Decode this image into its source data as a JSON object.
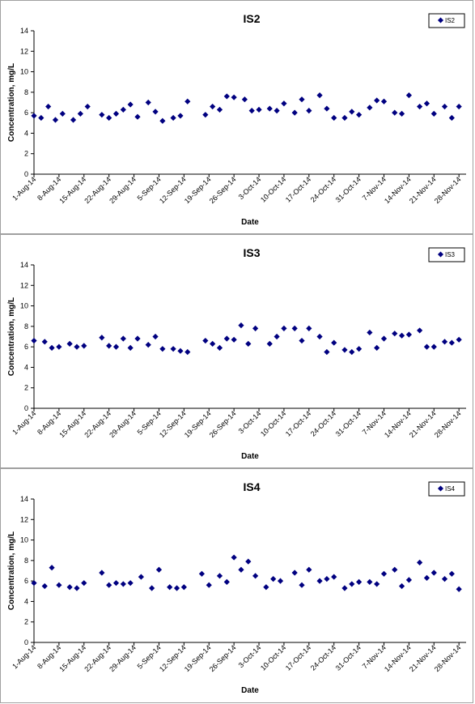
{
  "chart_data": [
    {
      "type": "scatter",
      "title": "IS2",
      "xlabel": "Date",
      "ylabel": "Concentration, mg/L",
      "ylim": [
        0,
        14
      ],
      "yticks": [
        0,
        2,
        4,
        6,
        8,
        10,
        12,
        14
      ],
      "xlim": [
        "2014-08-01",
        "2014-11-30"
      ],
      "xtick_labels": [
        "1-Aug-14",
        "8-Aug-14",
        "15-Aug-14",
        "22-Aug-14",
        "29-Aug-14",
        "5-Sep-14",
        "12-Sep-14",
        "19-Sep-14",
        "26-Sep-14",
        "3-Oct-14",
        "10-Oct-14",
        "17-Oct-14",
        "24-Oct-14",
        "31-Oct-14",
        "7-Nov-14",
        "14-Nov-14",
        "21-Nov-14",
        "28-Nov-14"
      ],
      "grid": false,
      "legend": "top-right",
      "marker_color": "#000080",
      "series": [
        {
          "name": "IS2",
          "x": [
            "2014-08-01",
            "2014-08-03",
            "2014-08-05",
            "2014-08-07",
            "2014-08-09",
            "2014-08-12",
            "2014-08-14",
            "2014-08-16",
            "2014-08-20",
            "2014-08-22",
            "2014-08-24",
            "2014-08-26",
            "2014-08-28",
            "2014-08-30",
            "2014-09-02",
            "2014-09-04",
            "2014-09-06",
            "2014-09-09",
            "2014-09-11",
            "2014-09-13",
            "2014-09-18",
            "2014-09-20",
            "2014-09-22",
            "2014-09-24",
            "2014-09-26",
            "2014-09-29",
            "2014-10-01",
            "2014-10-03",
            "2014-10-06",
            "2014-10-08",
            "2014-10-10",
            "2014-10-13",
            "2014-10-15",
            "2014-10-17",
            "2014-10-20",
            "2014-10-22",
            "2014-10-24",
            "2014-10-27",
            "2014-10-29",
            "2014-10-31",
            "2014-11-03",
            "2014-11-05",
            "2014-11-07",
            "2014-11-10",
            "2014-11-12",
            "2014-11-14",
            "2014-11-17",
            "2014-11-19",
            "2014-11-21",
            "2014-11-24",
            "2014-11-26",
            "2014-11-28"
          ],
          "values": [
            5.7,
            5.5,
            6.6,
            5.3,
            5.9,
            5.3,
            5.9,
            6.6,
            5.8,
            5.5,
            5.9,
            6.3,
            6.8,
            5.6,
            7.0,
            6.1,
            5.2,
            5.5,
            5.7,
            7.1,
            5.8,
            6.6,
            6.3,
            7.6,
            7.5,
            7.3,
            6.2,
            6.3,
            6.4,
            6.2,
            6.9,
            6.0,
            7.3,
            6.2,
            7.7,
            6.4,
            5.5,
            5.5,
            6.1,
            5.8,
            6.5,
            7.2,
            7.1,
            6.0,
            5.9,
            7.7,
            6.6,
            6.9,
            5.9,
            6.6,
            5.5,
            6.6
          ]
        }
      ]
    },
    {
      "type": "scatter",
      "title": "IS3",
      "xlabel": "Date",
      "ylabel": "Concentration, mg/L",
      "ylim": [
        0,
        14
      ],
      "yticks": [
        0,
        2,
        4,
        6,
        8,
        10,
        12,
        14
      ],
      "xlim": [
        "2014-08-01",
        "2014-11-30"
      ],
      "xtick_labels": [
        "1-Aug-14",
        "8-Aug-14",
        "15-Aug-14",
        "22-Aug-14",
        "29-Aug-14",
        "5-Sep-14",
        "12-Sep-14",
        "19-Sep-14",
        "26-Sep-14",
        "3-Oct-14",
        "10-Oct-14",
        "17-Oct-14",
        "24-Oct-14",
        "31-Oct-14",
        "7-Nov-14",
        "14-Nov-14",
        "21-Nov-14",
        "28-Nov-14"
      ],
      "grid": false,
      "legend": "top-right",
      "marker_color": "#000080",
      "series": [
        {
          "name": "IS3",
          "x": [
            "2014-08-01",
            "2014-08-04",
            "2014-08-06",
            "2014-08-08",
            "2014-08-11",
            "2014-08-13",
            "2014-08-15",
            "2014-08-20",
            "2014-08-22",
            "2014-08-24",
            "2014-08-26",
            "2014-08-28",
            "2014-08-30",
            "2014-09-02",
            "2014-09-04",
            "2014-09-06",
            "2014-09-09",
            "2014-09-11",
            "2014-09-13",
            "2014-09-18",
            "2014-09-20",
            "2014-09-22",
            "2014-09-24",
            "2014-09-26",
            "2014-09-28",
            "2014-09-30",
            "2014-10-02",
            "2014-10-06",
            "2014-10-08",
            "2014-10-10",
            "2014-10-13",
            "2014-10-15",
            "2014-10-17",
            "2014-10-20",
            "2014-10-22",
            "2014-10-24",
            "2014-10-27",
            "2014-10-29",
            "2014-10-31",
            "2014-11-03",
            "2014-11-05",
            "2014-11-07",
            "2014-11-10",
            "2014-11-12",
            "2014-11-14",
            "2014-11-17",
            "2014-11-19",
            "2014-11-21",
            "2014-11-24",
            "2014-11-26",
            "2014-11-28"
          ],
          "values": [
            6.6,
            6.5,
            5.9,
            6.0,
            6.3,
            6.0,
            6.1,
            6.9,
            6.1,
            6.0,
            6.8,
            5.9,
            6.8,
            6.2,
            7.0,
            5.8,
            5.8,
            5.6,
            5.5,
            6.6,
            6.3,
            5.9,
            6.8,
            6.7,
            8.1,
            6.3,
            7.8,
            6.3,
            7.0,
            7.8,
            7.8,
            6.6,
            7.8,
            7.0,
            5.5,
            6.4,
            5.7,
            5.5,
            5.8,
            7.4,
            5.9,
            6.8,
            7.3,
            7.1,
            7.2,
            7.6,
            6.0,
            6.0,
            6.5,
            6.4,
            6.7
          ]
        }
      ]
    },
    {
      "type": "scatter",
      "title": "IS4",
      "xlabel": "Date",
      "ylabel": "Concentration, mg/L",
      "ylim": [
        0,
        14
      ],
      "yticks": [
        0,
        2,
        4,
        6,
        8,
        10,
        12,
        14
      ],
      "xlim": [
        "2014-08-01",
        "2014-11-30"
      ],
      "xtick_labels": [
        "1-Aug-14",
        "8-Aug-14",
        "15-Aug-14",
        "22-Aug-14",
        "29-Aug-14",
        "5-Sep-14",
        "12-Sep-14",
        "19-Sep-14",
        "26-Sep-14",
        "3-Oct-14",
        "10-Oct-14",
        "17-Oct-14",
        "24-Oct-14",
        "31-Oct-14",
        "7-Nov-14",
        "14-Nov-14",
        "21-Nov-14",
        "28-Nov-14"
      ],
      "grid": false,
      "legend": "top-right",
      "marker_color": "#000080",
      "series": [
        {
          "name": "IS4",
          "x": [
            "2014-08-01",
            "2014-08-04",
            "2014-08-06",
            "2014-08-08",
            "2014-08-11",
            "2014-08-13",
            "2014-08-15",
            "2014-08-20",
            "2014-08-22",
            "2014-08-24",
            "2014-08-26",
            "2014-08-28",
            "2014-08-31",
            "2014-09-03",
            "2014-09-05",
            "2014-09-08",
            "2014-09-10",
            "2014-09-12",
            "2014-09-17",
            "2014-09-19",
            "2014-09-22",
            "2014-09-24",
            "2014-09-26",
            "2014-09-28",
            "2014-09-30",
            "2014-10-02",
            "2014-10-05",
            "2014-10-07",
            "2014-10-09",
            "2014-10-13",
            "2014-10-15",
            "2014-10-17",
            "2014-10-20",
            "2014-10-22",
            "2014-10-24",
            "2014-10-27",
            "2014-10-29",
            "2014-10-31",
            "2014-11-03",
            "2014-11-05",
            "2014-11-07",
            "2014-11-10",
            "2014-11-12",
            "2014-11-14",
            "2014-11-17",
            "2014-11-19",
            "2014-11-21",
            "2014-11-24",
            "2014-11-26",
            "2014-11-28"
          ],
          "values": [
            5.8,
            5.5,
            7.3,
            5.6,
            5.4,
            5.3,
            5.8,
            6.8,
            5.6,
            5.8,
            5.7,
            5.8,
            6.4,
            5.3,
            7.1,
            5.4,
            5.3,
            5.4,
            6.7,
            5.6,
            6.5,
            5.9,
            8.3,
            7.1,
            7.9,
            6.5,
            5.4,
            6.2,
            6.0,
            6.8,
            5.6,
            7.1,
            6.0,
            6.2,
            6.4,
            5.3,
            5.7,
            5.9,
            5.9,
            5.7,
            6.7,
            7.1,
            5.5,
            6.1,
            7.8,
            6.3,
            6.8,
            6.2,
            6.7,
            5.2
          ]
        }
      ]
    }
  ]
}
